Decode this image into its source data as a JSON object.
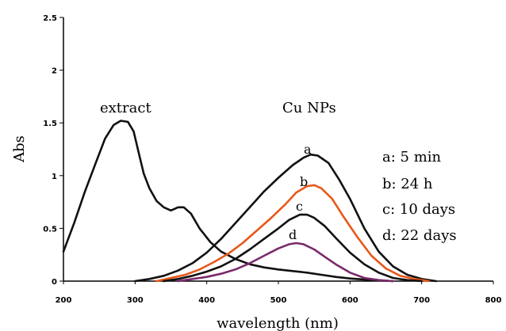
{
  "chart_data": {
    "type": "line",
    "title": "",
    "xlabel": "wavelength (nm)",
    "ylabel": "Abs",
    "xlim": [
      200,
      800
    ],
    "ylim": [
      0,
      2.5
    ],
    "xticks": [
      "200",
      "300",
      "400",
      "500",
      "600",
      "700",
      "800"
    ],
    "yticks": [
      "0",
      "0.5",
      "1",
      "1.5",
      "2",
      "2.5"
    ],
    "grid": false,
    "annotations": {
      "extract_label": "extract",
      "cu_label": "Cu NPs"
    },
    "legend": {
      "placement": "right",
      "entries": [
        "a: 5 min",
        "b: 24 h",
        "c: 10 days",
        "d: 22 days"
      ]
    },
    "series": [
      {
        "label": "extract",
        "color": "#111111",
        "points": [
          [
            200,
            0.28
          ],
          [
            215,
            0.55
          ],
          [
            230,
            0.85
          ],
          [
            245,
            1.12
          ],
          [
            258,
            1.35
          ],
          [
            270,
            1.48
          ],
          [
            280,
            1.52
          ],
          [
            290,
            1.51
          ],
          [
            298,
            1.42
          ],
          [
            305,
            1.22
          ],
          [
            312,
            1.02
          ],
          [
            320,
            0.88
          ],
          [
            330,
            0.76
          ],
          [
            340,
            0.7
          ],
          [
            350,
            0.67
          ],
          [
            360,
            0.7
          ],
          [
            368,
            0.7
          ],
          [
            378,
            0.64
          ],
          [
            390,
            0.5
          ],
          [
            405,
            0.37
          ],
          [
            420,
            0.28
          ],
          [
            440,
            0.21
          ],
          [
            460,
            0.16
          ],
          [
            480,
            0.13
          ],
          [
            500,
            0.11
          ],
          [
            520,
            0.095
          ],
          [
            540,
            0.08
          ],
          [
            560,
            0.06
          ],
          [
            580,
            0.04
          ],
          [
            600,
            0.025
          ],
          [
            630,
            0.01
          ],
          [
            660,
            0.0
          ]
        ]
      },
      {
        "label": "a",
        "color": "#111111",
        "points": [
          [
            300,
            0.0
          ],
          [
            320,
            0.02
          ],
          [
            340,
            0.05
          ],
          [
            360,
            0.1
          ],
          [
            380,
            0.17
          ],
          [
            400,
            0.27
          ],
          [
            420,
            0.4
          ],
          [
            440,
            0.55
          ],
          [
            460,
            0.7
          ],
          [
            480,
            0.85
          ],
          [
            500,
            0.98
          ],
          [
            520,
            1.1
          ],
          [
            535,
            1.17
          ],
          [
            545,
            1.2
          ],
          [
            555,
            1.19
          ],
          [
            570,
            1.12
          ],
          [
            585,
            0.96
          ],
          [
            600,
            0.78
          ],
          [
            620,
            0.5
          ],
          [
            640,
            0.28
          ],
          [
            660,
            0.14
          ],
          [
            680,
            0.06
          ],
          [
            700,
            0.02
          ],
          [
            720,
            0.0
          ]
        ]
      },
      {
        "label": "b",
        "color": "#e8581a",
        "points": [
          [
            330,
            0.0
          ],
          [
            350,
            0.03
          ],
          [
            370,
            0.06
          ],
          [
            390,
            0.11
          ],
          [
            410,
            0.18
          ],
          [
            430,
            0.26
          ],
          [
            450,
            0.36
          ],
          [
            470,
            0.48
          ],
          [
            490,
            0.6
          ],
          [
            510,
            0.73
          ],
          [
            525,
            0.84
          ],
          [
            540,
            0.9
          ],
          [
            550,
            0.91
          ],
          [
            560,
            0.88
          ],
          [
            575,
            0.78
          ],
          [
            590,
            0.62
          ],
          [
            610,
            0.42
          ],
          [
            630,
            0.24
          ],
          [
            650,
            0.12
          ],
          [
            670,
            0.05
          ],
          [
            690,
            0.02
          ],
          [
            710,
            0.0
          ]
        ]
      },
      {
        "label": "c",
        "color": "#111111",
        "points": [
          [
            340,
            0.0
          ],
          [
            360,
            0.02
          ],
          [
            380,
            0.05
          ],
          [
            400,
            0.09
          ],
          [
            420,
            0.14
          ],
          [
            440,
            0.21
          ],
          [
            460,
            0.3
          ],
          [
            480,
            0.4
          ],
          [
            500,
            0.5
          ],
          [
            515,
            0.58
          ],
          [
            530,
            0.63
          ],
          [
            540,
            0.63
          ],
          [
            550,
            0.6
          ],
          [
            565,
            0.52
          ],
          [
            580,
            0.41
          ],
          [
            600,
            0.27
          ],
          [
            620,
            0.16
          ],
          [
            640,
            0.08
          ],
          [
            660,
            0.03
          ],
          [
            680,
            0.01
          ],
          [
            700,
            0.0
          ]
        ]
      },
      {
        "label": "d",
        "color": "#7a2a6a",
        "points": [
          [
            360,
            0.0
          ],
          [
            380,
            0.02
          ],
          [
            400,
            0.04
          ],
          [
            420,
            0.07
          ],
          [
            440,
            0.11
          ],
          [
            460,
            0.17
          ],
          [
            480,
            0.24
          ],
          [
            500,
            0.31
          ],
          [
            515,
            0.35
          ],
          [
            525,
            0.36
          ],
          [
            535,
            0.35
          ],
          [
            550,
            0.3
          ],
          [
            565,
            0.23
          ],
          [
            580,
            0.16
          ],
          [
            600,
            0.08
          ],
          [
            620,
            0.03
          ],
          [
            640,
            0.01
          ],
          [
            660,
            0.0
          ]
        ]
      }
    ],
    "series_labels": [
      "a",
      "b",
      "c",
      "d"
    ]
  }
}
